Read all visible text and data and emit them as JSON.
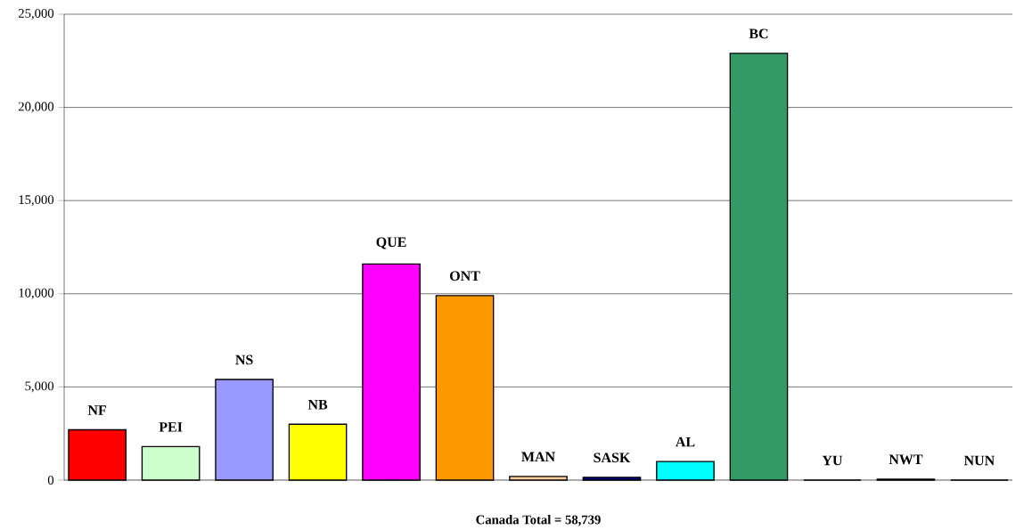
{
  "chart_data": {
    "type": "bar",
    "categories": [
      "NF",
      "PEI",
      "NS",
      "NB",
      "QUE",
      "ONT",
      "MAN",
      "SASK",
      "AL",
      "BC",
      "YU",
      "NWT",
      "NUN"
    ],
    "values": [
      2700,
      1800,
      5400,
      3000,
      11600,
      9900,
      200,
      150,
      1000,
      22900,
      0,
      50,
      0
    ],
    "colors": [
      "#ff0000",
      "#ccffcc",
      "#9999ff",
      "#ffff00",
      "#ff00ff",
      "#ff9900",
      "#ffcc99",
      "#000080",
      "#00ffff",
      "#339966",
      "#ffffff",
      "#333333",
      "#ffffff"
    ],
    "ylim": [
      0,
      25000
    ],
    "yticks": [
      {
        "value": 0,
        "label": "0"
      },
      {
        "value": 5000,
        "label": "5,000"
      },
      {
        "value": 10000,
        "label": "10,000"
      },
      {
        "value": 15000,
        "label": "15,000"
      },
      {
        "value": 20000,
        "label": "20,000"
      },
      {
        "value": 25000,
        "label": "25,000"
      }
    ],
    "grid": "y",
    "annotations": [
      "Canada Total = 58,739"
    ]
  }
}
